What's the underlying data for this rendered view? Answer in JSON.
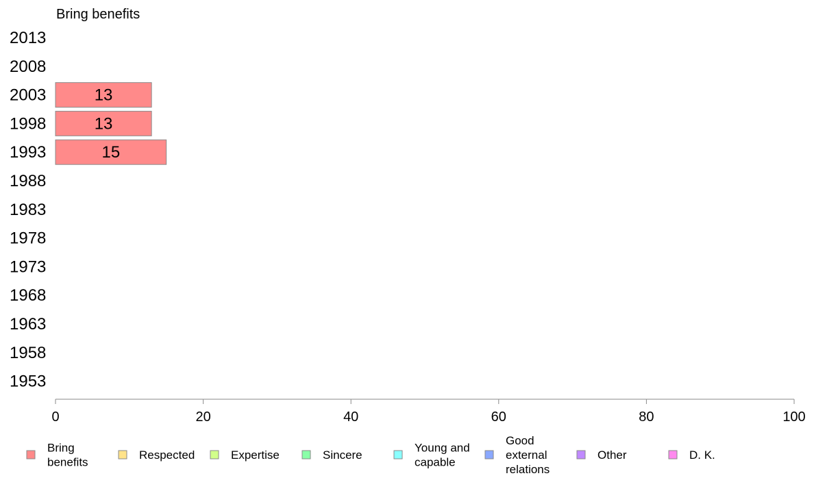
{
  "chart_data": {
    "type": "bar",
    "orientation": "horizontal",
    "panel_title": "Bring benefits",
    "categories": [
      "2013",
      "2008",
      "2003",
      "1998",
      "1993",
      "1988",
      "1983",
      "1978",
      "1973",
      "1968",
      "1963",
      "1958",
      "1953"
    ],
    "series": [
      {
        "name": "Bring benefits",
        "color": "#ff8a8a",
        "values": [
          null,
          null,
          13,
          13,
          15,
          null,
          null,
          null,
          null,
          null,
          null,
          null,
          null
        ],
        "data_labels": [
          "",
          "",
          "13",
          "13",
          "15",
          "",
          "",
          "",
          "",
          "",
          "",
          "",
          ""
        ]
      }
    ],
    "xlim": [
      0,
      100
    ],
    "xticks": [
      0,
      20,
      40,
      60,
      80,
      100
    ],
    "xtick_labels": [
      "0",
      "20",
      "40",
      "60",
      "80",
      "100"
    ],
    "legend": {
      "placement": "bottom",
      "items": [
        {
          "lines": [
            "Bring",
            "benefits"
          ],
          "color": "#ff8a8a"
        },
        {
          "lines": [
            "Respected"
          ],
          "color": "#ffe38a"
        },
        {
          "lines": [
            "Expertise"
          ],
          "color": "#d2ff8a"
        },
        {
          "lines": [
            "Sincere"
          ],
          "color": "#8affa8"
        },
        {
          "lines": [
            "Young and",
            "capable"
          ],
          "color": "#8affff"
        },
        {
          "lines": [
            "Good",
            "external",
            "relations"
          ],
          "color": "#8aa8ff"
        },
        {
          "lines": [
            "Other"
          ],
          "color": "#c08aff"
        },
        {
          "lines": [
            "D. K."
          ],
          "color": "#ff8aee"
        }
      ]
    }
  }
}
